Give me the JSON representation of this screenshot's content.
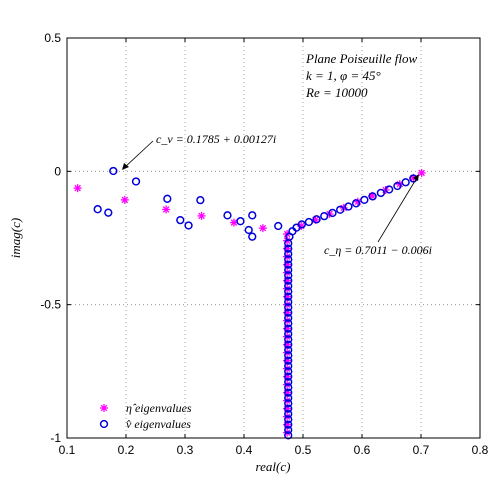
{
  "chart_data": {
    "type": "scatter",
    "title": "",
    "xlabel": "real(c)",
    "ylabel": "imag(c)",
    "xlim": [
      0.1,
      0.8
    ],
    "ylim": [
      -1,
      0.5
    ],
    "xticks": [
      "0.1",
      "0.2",
      "0.3",
      "0.4",
      "0.5",
      "0.6",
      "0.7",
      "0.8"
    ],
    "yticks": [
      "0.5",
      "0",
      "-0.5",
      "-1"
    ],
    "grid": true,
    "legend_position": "bottom-left",
    "info_lines": [
      "Plane Poiseuille flow",
      "k = 1, φ = 45°",
      "Re = 10000"
    ],
    "annotations": [
      {
        "text": "c_v = 0.1785 + 0.00127i",
        "point": [
          0.1785,
          0.00127
        ]
      },
      {
        "text": "c_η = 0.7011 − 0.006i",
        "point": [
          0.7011,
          -0.006
        ]
      }
    ],
    "series": [
      {
        "name": "η̂ eigenvalues",
        "marker": "asterisk",
        "color": "#ff00ff",
        "points": [
          [
            0.118,
            -0.063
          ],
          [
            0.198,
            -0.107
          ],
          [
            0.268,
            -0.143
          ],
          [
            0.328,
            -0.167
          ],
          [
            0.383,
            -0.192
          ],
          [
            0.432,
            -0.213
          ],
          [
            0.473,
            -0.235
          ],
          [
            0.497,
            -0.205
          ],
          [
            0.521,
            -0.182
          ],
          [
            0.545,
            -0.16
          ],
          [
            0.569,
            -0.137
          ],
          [
            0.593,
            -0.114
          ],
          [
            0.617,
            -0.092
          ],
          [
            0.64,
            -0.07
          ],
          [
            0.664,
            -0.048
          ],
          [
            0.687,
            -0.025
          ],
          [
            0.7011,
            -0.006
          ],
          [
            0.473,
            -0.26
          ],
          [
            0.473,
            -0.29
          ],
          [
            0.473,
            -0.32
          ],
          [
            0.473,
            -0.35
          ],
          [
            0.473,
            -0.38
          ],
          [
            0.473,
            -0.41
          ],
          [
            0.473,
            -0.44
          ],
          [
            0.473,
            -0.47
          ],
          [
            0.473,
            -0.5
          ],
          [
            0.473,
            -0.53
          ],
          [
            0.473,
            -0.56
          ],
          [
            0.473,
            -0.59
          ],
          [
            0.473,
            -0.62
          ],
          [
            0.473,
            -0.65
          ],
          [
            0.473,
            -0.68
          ],
          [
            0.473,
            -0.71
          ],
          [
            0.473,
            -0.74
          ],
          [
            0.473,
            -0.77
          ],
          [
            0.473,
            -0.8
          ],
          [
            0.473,
            -0.83
          ],
          [
            0.473,
            -0.86
          ],
          [
            0.473,
            -0.89
          ],
          [
            0.473,
            -0.92
          ],
          [
            0.473,
            -0.95
          ],
          [
            0.473,
            -0.98
          ]
        ]
      },
      {
        "name": "v̂ eigenvalues",
        "marker": "circle",
        "color": "#0000dd",
        "points": [
          [
            0.1785,
            0.00127
          ],
          [
            0.217,
            -0.038
          ],
          [
            0.152,
            -0.142
          ],
          [
            0.17,
            -0.155
          ],
          [
            0.27,
            -0.103
          ],
          [
            0.292,
            -0.183
          ],
          [
            0.306,
            -0.203
          ],
          [
            0.326,
            -0.108
          ],
          [
            0.372,
            -0.165
          ],
          [
            0.394,
            -0.187
          ],
          [
            0.408,
            -0.22
          ],
          [
            0.414,
            -0.245
          ],
          [
            0.414,
            -0.165
          ],
          [
            0.458,
            -0.205
          ],
          [
            0.477,
            -0.245
          ],
          [
            0.482,
            -0.225
          ],
          [
            0.489,
            -0.211
          ],
          [
            0.498,
            -0.199
          ],
          [
            0.51,
            -0.19
          ],
          [
            0.523,
            -0.18
          ],
          [
            0.536,
            -0.168
          ],
          [
            0.55,
            -0.156
          ],
          [
            0.563,
            -0.144
          ],
          [
            0.577,
            -0.132
          ],
          [
            0.59,
            -0.12
          ],
          [
            0.604,
            -0.107
          ],
          [
            0.618,
            -0.094
          ],
          [
            0.632,
            -0.081
          ],
          [
            0.646,
            -0.068
          ],
          [
            0.66,
            -0.055
          ],
          [
            0.674,
            -0.041
          ],
          [
            0.687,
            -0.027
          ],
          [
            0.475,
            -0.27
          ],
          [
            0.475,
            -0.29
          ],
          [
            0.475,
            -0.31
          ],
          [
            0.475,
            -0.33
          ],
          [
            0.475,
            -0.35
          ],
          [
            0.475,
            -0.37
          ],
          [
            0.475,
            -0.39
          ],
          [
            0.475,
            -0.41
          ],
          [
            0.475,
            -0.43
          ],
          [
            0.475,
            -0.45
          ],
          [
            0.475,
            -0.47
          ],
          [
            0.475,
            -0.49
          ],
          [
            0.475,
            -0.51
          ],
          [
            0.475,
            -0.53
          ],
          [
            0.475,
            -0.55
          ],
          [
            0.475,
            -0.57
          ],
          [
            0.475,
            -0.59
          ],
          [
            0.475,
            -0.61
          ],
          [
            0.475,
            -0.63
          ],
          [
            0.475,
            -0.65
          ],
          [
            0.475,
            -0.67
          ],
          [
            0.475,
            -0.69
          ],
          [
            0.475,
            -0.71
          ],
          [
            0.475,
            -0.73
          ],
          [
            0.475,
            -0.75
          ],
          [
            0.475,
            -0.77
          ],
          [
            0.475,
            -0.79
          ],
          [
            0.475,
            -0.81
          ],
          [
            0.475,
            -0.83
          ],
          [
            0.475,
            -0.85
          ],
          [
            0.475,
            -0.87
          ],
          [
            0.475,
            -0.89
          ],
          [
            0.475,
            -0.91
          ],
          [
            0.475,
            -0.93
          ],
          [
            0.475,
            -0.95
          ],
          [
            0.475,
            -0.97
          ],
          [
            0.475,
            -0.99
          ]
        ]
      }
    ]
  }
}
